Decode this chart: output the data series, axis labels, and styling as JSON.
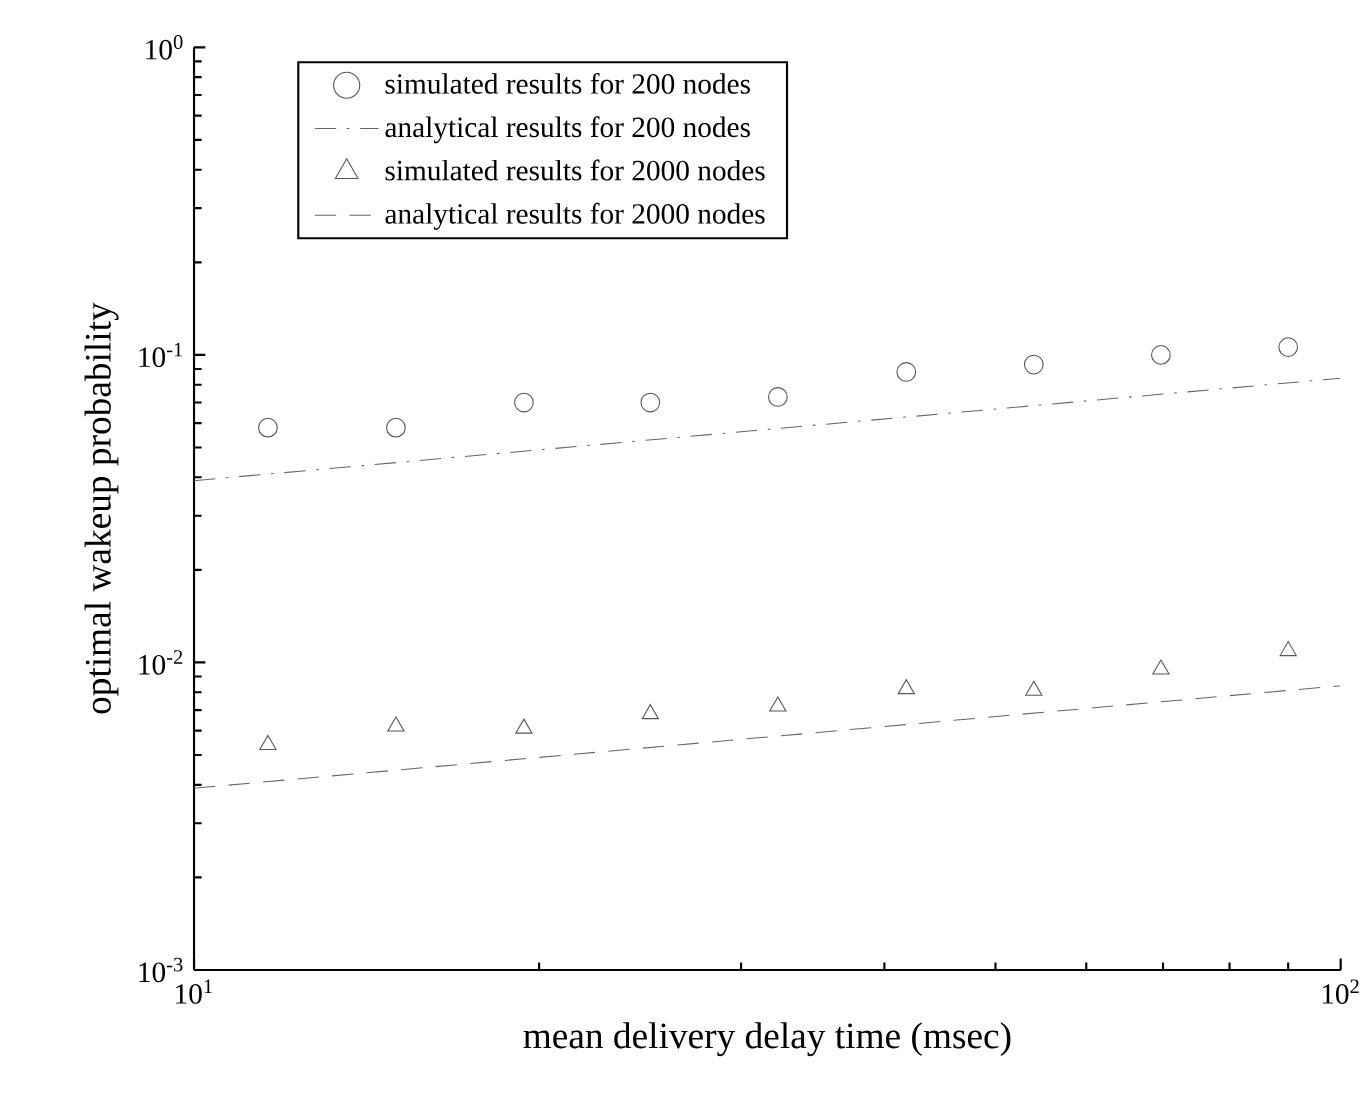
{
  "chart_data": {
    "type": "scatter",
    "xlabel": "mean delivery delay time (msec)",
    "ylabel": "optimal wakeup probability",
    "log": "xy",
    "grid": false,
    "legend": "top left",
    "xlim": [
      10,
      100
    ],
    "ylim": [
      0.001,
      1
    ],
    "xticks": [
      {
        "value": 10,
        "label": "10$^{1}$"
      },
      {
        "value": 100,
        "label": "10$^{2}$"
      }
    ],
    "yticks": [
      {
        "value": 0.001,
        "label": "10$^{-3}$"
      },
      {
        "value": 0.01,
        "label": "10$^{-2}$"
      },
      {
        "value": 0.1,
        "label": "10$^{-1}$"
      },
      {
        "value": 1,
        "label": "10$^{0}$"
      }
    ],
    "series": [
      {
        "name": "simulated results for 200 nodes",
        "marker": "circle",
        "color": "#555555",
        "x": [
          11.6,
          15,
          19.4,
          25,
          32.3,
          41.8,
          54,
          69.7,
          90
        ],
        "values": [
          0.058,
          0.058,
          0.07,
          0.07,
          0.073,
          0.088,
          0.093,
          0.1,
          0.106
        ]
      },
      {
        "name": "analytical results for 200 nodes",
        "type": "line",
        "line_style": "dashdot",
        "color": "#666666",
        "x": [
          10,
          100
        ],
        "values": [
          0.039,
          0.084
        ]
      },
      {
        "name": "simulated results for 2000 nodes",
        "marker": "triangle",
        "color": "#555555",
        "x": [
          11.6,
          15,
          19.4,
          25,
          32.3,
          41.8,
          54,
          69.7,
          90
        ],
        "values": [
          0.0054,
          0.0062,
          0.0061,
          0.0068,
          0.0072,
          0.0082,
          0.0081,
          0.0095,
          0.0109
        ]
      },
      {
        "name": "analytical results for 2000 nodes",
        "type": "line",
        "line_style": "dashed",
        "color": "#666666",
        "x": [
          10,
          100
        ],
        "values": [
          0.0039,
          0.0084
        ]
      }
    ]
  }
}
